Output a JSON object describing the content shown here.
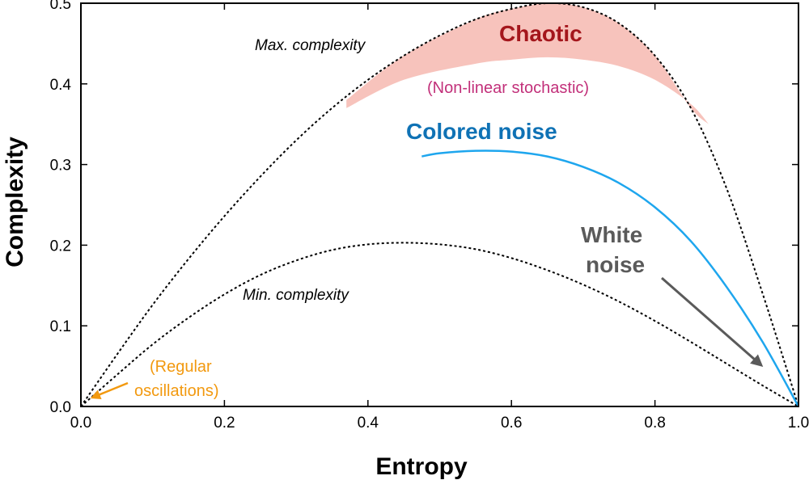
{
  "chart_data": {
    "type": "line",
    "xlabel": "Entropy",
    "ylabel": "Complexity",
    "xlim": [
      0,
      1
    ],
    "ylim": [
      0,
      0.5
    ],
    "xticks": [
      "0.0",
      "0.2",
      "0.4",
      "0.6",
      "0.8",
      "1.0"
    ],
    "yticks": [
      "0.0",
      "0.1",
      "0.2",
      "0.3",
      "0.4",
      "0.5"
    ],
    "series": [
      {
        "name": "Max. complexity",
        "style": "dotted",
        "color": "#000000",
        "x": [
          0,
          0.05,
          0.1,
          0.15,
          0.2,
          0.25,
          0.3,
          0.35,
          0.4,
          0.45,
          0.5,
          0.55,
          0.6,
          0.65,
          0.7,
          0.75,
          0.8,
          0.85,
          0.9,
          0.95,
          1.0
        ],
        "y": [
          0,
          0.064,
          0.126,
          0.183,
          0.236,
          0.285,
          0.33,
          0.37,
          0.405,
          0.435,
          0.46,
          0.48,
          0.493,
          0.5,
          0.495,
          0.475,
          0.435,
          0.37,
          0.27,
          0.14,
          0
        ]
      },
      {
        "name": "Min. complexity",
        "style": "dotted",
        "color": "#000000",
        "x": [
          0,
          0.05,
          0.1,
          0.15,
          0.2,
          0.25,
          0.3,
          0.35,
          0.4,
          0.45,
          0.5,
          0.55,
          0.6,
          0.65,
          0.7,
          0.75,
          0.8,
          0.85,
          0.9,
          0.95,
          1.0
        ],
        "y": [
          0,
          0.039,
          0.077,
          0.11,
          0.139,
          0.163,
          0.181,
          0.194,
          0.201,
          0.203,
          0.201,
          0.195,
          0.184,
          0.169,
          0.151,
          0.13,
          0.106,
          0.08,
          0.053,
          0.026,
          0
        ]
      },
      {
        "name": "Colored noise",
        "style": "solid",
        "color": "#1ea6ee",
        "x": [
          0.475,
          0.5,
          0.55,
          0.6,
          0.65,
          0.7,
          0.75,
          0.8,
          0.85,
          0.9,
          0.95,
          1.0
        ],
        "y": [
          0.31,
          0.314,
          0.317,
          0.316,
          0.31,
          0.297,
          0.277,
          0.247,
          0.205,
          0.148,
          0.08,
          0
        ]
      }
    ],
    "regions": [
      {
        "name": "Chaotic",
        "color": "#f7c3bc",
        "x": [
          0.37,
          0.45,
          0.55,
          0.6,
          0.65,
          0.7,
          0.75,
          0.8,
          0.85,
          0.875
        ],
        "y_upper": [
          0.38,
          0.435,
          0.48,
          0.493,
          0.5,
          0.495,
          0.475,
          0.435,
          0.37,
          0.35
        ],
        "y_lower": [
          0.37,
          0.405,
          0.425,
          0.43,
          0.433,
          0.43,
          0.422,
          0.405,
          0.375,
          0.35
        ]
      }
    ],
    "annotations": [
      {
        "text": "Max. complexity",
        "italic": true,
        "color": "#000000"
      },
      {
        "text": "Min. complexity",
        "italic": true,
        "color": "#000000"
      },
      {
        "text": "Chaotic",
        "color": "#a4161c"
      },
      {
        "text": "(Non-linear stochastic)",
        "color": "#c2307a"
      },
      {
        "text": "Colored noise",
        "color": "#0f72b5"
      },
      {
        "text": "White",
        "color": "#5a5a5a"
      },
      {
        "text": "noise",
        "color": "#5a5a5a"
      },
      {
        "text": "(Regular",
        "color": "#f2990f"
      },
      {
        "text": "oscillations)",
        "color": "#f2990f"
      }
    ],
    "arrows": [
      {
        "from_label": "White noise",
        "to": [
          0.95,
          0.05
        ],
        "color": "#5a5a5a"
      },
      {
        "from_label": "(Regular oscillations)",
        "to": [
          0.02,
          0.01
        ],
        "color": "#f2990f"
      }
    ]
  }
}
